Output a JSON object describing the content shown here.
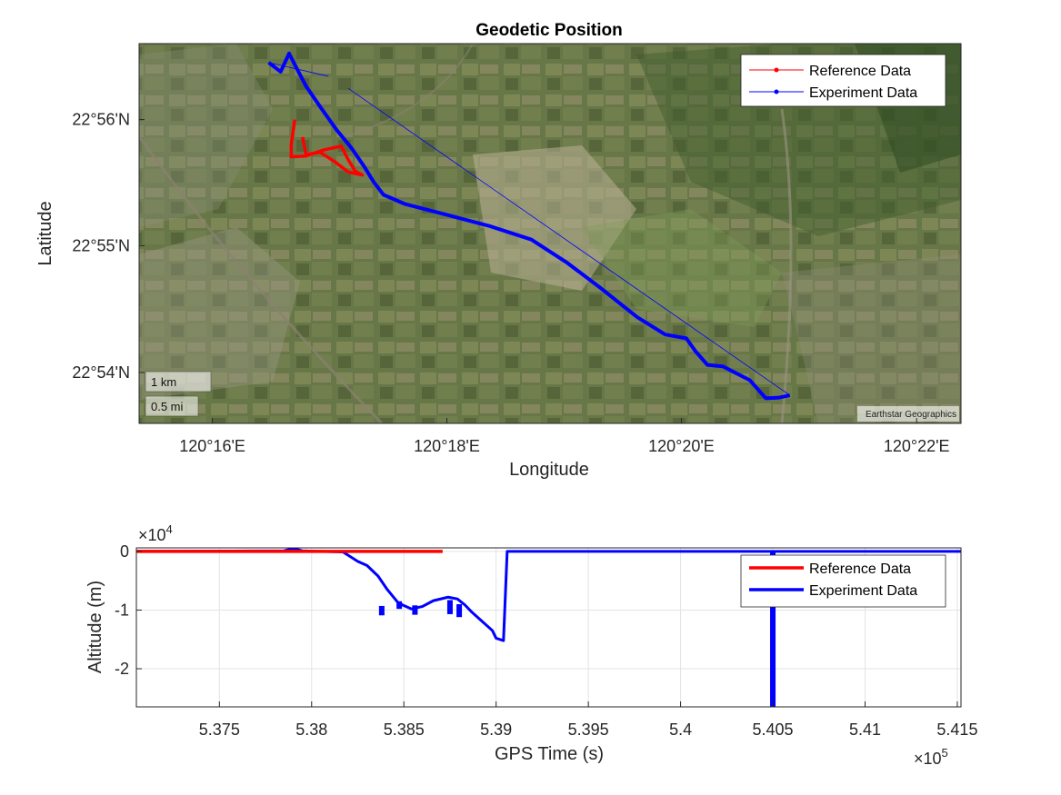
{
  "chart_data": [
    {
      "type": "line",
      "subtype": "geographic-map",
      "title": "Geodetic Position",
      "xlabel": "Longitude",
      "ylabel": "Latitude",
      "xlim": [
        120.2563,
        120.373
      ],
      "ylim": [
        22.8933,
        22.9433
      ],
      "xticks": [
        {
          "value": 120.2667,
          "label": "120°16'E"
        },
        {
          "value": 120.3,
          "label": "120°18'E"
        },
        {
          "value": 120.3333,
          "label": "120°20'E"
        },
        {
          "value": 120.3667,
          "label": "120°22'E"
        }
      ],
      "yticks": [
        {
          "value": 22.9,
          "label": "22°54'N"
        },
        {
          "value": 22.9167,
          "label": "22°55'N"
        },
        {
          "value": 22.9333,
          "label": "22°56'N"
        }
      ],
      "basemap": "satellite",
      "attribution": "Earthstar Geographics",
      "scalebar": [
        "1 km",
        "0.5 mi"
      ],
      "legend": {
        "position": "top-right",
        "entries": [
          "Reference Data",
          "Experiment Data"
        ]
      },
      "series": [
        {
          "name": "Reference Data",
          "color": "#ff0000",
          "points": [
            [
              120.2784,
              22.9333
            ],
            [
              120.2779,
              22.93
            ],
            [
              120.2779,
              22.9284
            ],
            [
              120.28,
              22.9285
            ],
            [
              120.2825,
              22.9293
            ],
            [
              120.285,
              22.9298
            ],
            [
              120.286,
              22.928
            ],
            [
              120.287,
              22.9265
            ],
            [
              120.288,
              22.926
            ],
            [
              120.286,
              22.9264
            ],
            [
              120.284,
              22.9278
            ],
            [
              120.282,
              22.929
            ],
            [
              120.28,
              22.9287
            ],
            [
              120.2795,
              22.931
            ]
          ]
        },
        {
          "name": "Experiment Data",
          "color": "#0000ff",
          "points": [
            [
              120.2747,
              22.9408
            ],
            [
              120.2764,
              22.9396
            ],
            [
              120.2776,
              22.942
            ],
            [
              120.2787,
              22.94
            ],
            [
              120.28,
              22.9377
            ],
            [
              120.282,
              22.935
            ],
            [
              120.2843,
              22.932
            ],
            [
              120.2865,
              22.9295
            ],
            [
              120.2882,
              22.9272
            ],
            [
              120.2896,
              22.9251
            ],
            [
              120.291,
              22.9234
            ],
            [
              120.294,
              22.9222
            ],
            [
              120.299,
              22.921
            ],
            [
              120.306,
              22.9193
            ],
            [
              120.312,
              22.9175
            ],
            [
              120.317,
              22.9145
            ],
            [
              120.322,
              22.911
            ],
            [
              120.327,
              22.9073
            ],
            [
              120.331,
              22.905
            ],
            [
              120.334,
              22.9045
            ],
            [
              120.3353,
              22.9028
            ],
            [
              120.337,
              22.901
            ],
            [
              120.3392,
              22.9008
            ],
            [
              120.343,
              22.899
            ],
            [
              120.3453,
              22.8966
            ],
            [
              120.3472,
              22.8967
            ],
            [
              120.3487,
              22.897
            ],
            [
              120.286,
              22.9374
            ],
            [
              120.2832,
              22.939
            ]
          ]
        }
      ]
    },
    {
      "type": "line",
      "title": "",
      "xlabel": "GPS Time (s)",
      "ylabel": "Altitude (m)",
      "xlim": [
        537050,
        541520
      ],
      "ylim": [
        -26500,
        600
      ],
      "x_exponent_label": "×10",
      "x_exponent_power": "5",
      "y_exponent_label": "×10",
      "y_exponent_power": "4",
      "grid": true,
      "xticks": [
        {
          "value": 537500,
          "label": "5.375"
        },
        {
          "value": 538000,
          "label": "5.38"
        },
        {
          "value": 538500,
          "label": "5.385"
        },
        {
          "value": 539000,
          "label": "5.39"
        },
        {
          "value": 539500,
          "label": "5.395"
        },
        {
          "value": 540000,
          "label": "5.4"
        },
        {
          "value": 540500,
          "label": "5.405"
        },
        {
          "value": 541000,
          "label": "5.41"
        },
        {
          "value": 541500,
          "label": "5.415"
        }
      ],
      "yticks": [
        {
          "value": 0,
          "label": "0"
        },
        {
          "value": -10000,
          "label": "-1"
        },
        {
          "value": -20000,
          "label": "-2"
        }
      ],
      "legend": {
        "position": "top-right",
        "entries": [
          "Reference Data",
          "Experiment Data"
        ]
      },
      "series": [
        {
          "name": "Reference Data",
          "color": "#ff0000",
          "points": [
            [
              537050,
              0
            ],
            [
              538710,
              0
            ]
          ]
        },
        {
          "name": "Experiment Data",
          "color": "#0000ff",
          "points": [
            [
              537050,
              0
            ],
            [
              537850,
              100
            ],
            [
              537900,
              500
            ],
            [
              537950,
              100
            ],
            [
              538050,
              0
            ],
            [
              538170,
              -100
            ],
            [
              538250,
              -1700
            ],
            [
              538300,
              -2400
            ],
            [
              538360,
              -4200
            ],
            [
              538410,
              -6500
            ],
            [
              538470,
              -8800
            ],
            [
              538540,
              -9800
            ],
            [
              538600,
              -9400
            ],
            [
              538660,
              -8400
            ],
            [
              538740,
              -7800
            ],
            [
              538790,
              -8100
            ],
            [
              538830,
              -9100
            ],
            [
              538870,
              -10400
            ],
            [
              538920,
              -11800
            ],
            [
              538980,
              -13500
            ],
            [
              539000,
              -14800
            ],
            [
              539040,
              -15200
            ],
            [
              539060,
              0
            ],
            [
              541100,
              0
            ],
            [
              541520,
              0
            ]
          ],
          "spikes": [
            {
              "x": 538380,
              "low": -10900,
              "high": -9300
            },
            {
              "x": 538475,
              "low": -9800,
              "high": -8500
            },
            {
              "x": 538560,
              "low": -10800,
              "high": -9200
            },
            {
              "x": 538750,
              "low": -10700,
              "high": -8300
            },
            {
              "x": 538800,
              "low": -11200,
              "high": -9000
            },
            {
              "x": 540500,
              "low": -26500,
              "high": 0
            }
          ]
        }
      ]
    }
  ]
}
